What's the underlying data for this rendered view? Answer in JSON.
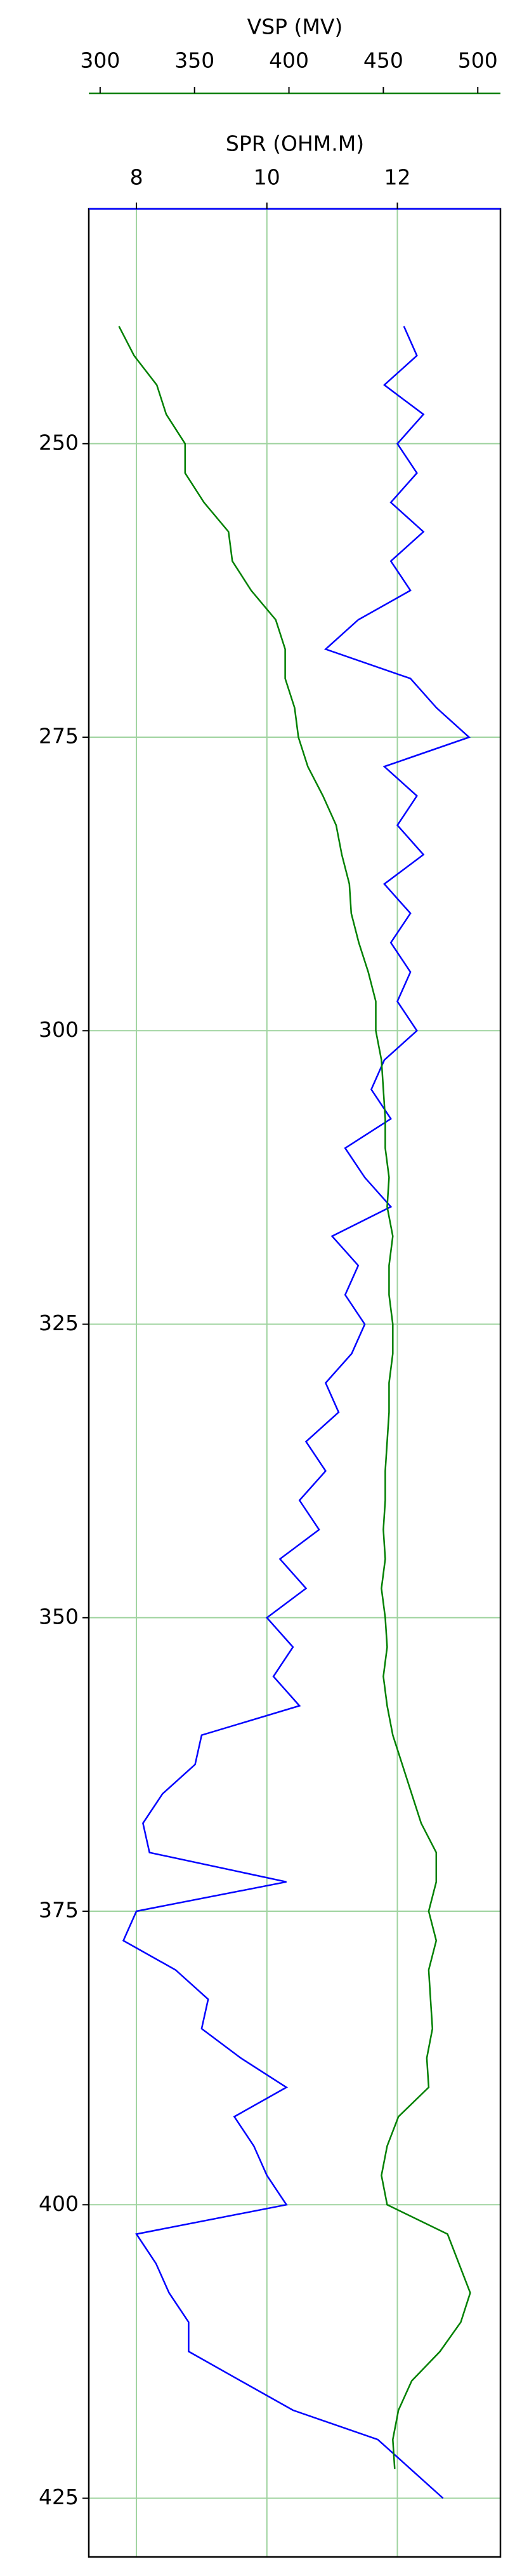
{
  "chart_data": {
    "type": "well-log",
    "depth": [
      240,
      242.5,
      245,
      247.5,
      250,
      252.5,
      255,
      257.5,
      260,
      262.5,
      265,
      267.5,
      270,
      272.5,
      275,
      277.5,
      280,
      282.5,
      285,
      287.5,
      290,
      292.5,
      295,
      297.5,
      300,
      302.5,
      305,
      307.5,
      310,
      312.5,
      315,
      317.5,
      320,
      322.5,
      325,
      327.5,
      330,
      332.5,
      335,
      337.5,
      340,
      342.5,
      345,
      347.5,
      350,
      352.5,
      355,
      357.5,
      360,
      362.5,
      365,
      367.5,
      370,
      372.5,
      375,
      377.5,
      380,
      382.5,
      385,
      387.5,
      390,
      392.5,
      395,
      397.5,
      400,
      402.5,
      405,
      407.5,
      410,
      412.5,
      415,
      417.5,
      420,
      422.5,
      425
    ],
    "series": [
      {
        "name": "SPR (OHM.M)",
        "color": "#0000ff",
        "axis": "x",
        "values": [
          12.1,
          12.3,
          11.8,
          12.4,
          12.0,
          12.3,
          11.9,
          12.4,
          11.9,
          12.2,
          11.4,
          10.9,
          12.2,
          12.6,
          13.1,
          11.8,
          12.3,
          12.0,
          12.4,
          11.8,
          12.2,
          11.9,
          12.2,
          12.0,
          12.3,
          11.8,
          11.6,
          11.9,
          11.2,
          11.5,
          11.9,
          11.0,
          11.4,
          11.2,
          11.5,
          11.3,
          10.9,
          11.1,
          10.6,
          10.9,
          10.5,
          10.8,
          10.2,
          10.6,
          10.0,
          10.4,
          10.1,
          10.5,
          9.0,
          8.9,
          8.4,
          8.1,
          8.2,
          10.3,
          8.0,
          7.8,
          8.6,
          9.1,
          9.0,
          9.6,
          10.3,
          9.5,
          9.8,
          10.0,
          10.3,
          8.0,
          8.3,
          8.5,
          8.8,
          8.8,
          9.6,
          10.4,
          11.7,
          12.2,
          12.7
        ]
      },
      {
        "name": "VSP (MV)",
        "color": "#008000",
        "axis": "x2",
        "values": [
          310,
          318,
          330,
          335,
          345,
          345,
          355,
          368,
          370,
          380,
          393,
          398,
          398,
          403,
          405,
          410,
          418,
          425,
          428,
          432,
          433,
          437,
          442,
          446,
          446,
          449,
          450,
          451,
          451,
          453,
          452,
          455,
          453,
          453,
          455,
          455,
          453,
          453,
          452,
          451,
          451,
          450,
          451,
          449,
          451,
          452,
          450,
          452,
          455,
          460,
          465,
          470,
          478,
          478,
          474,
          478,
          474,
          475,
          476,
          473,
          474,
          458,
          452,
          449,
          452,
          484,
          490,
          496,
          491,
          480,
          465,
          458,
          455,
          456,
          null
        ]
      }
    ],
    "xlim": [
      7.27,
      13.58
    ],
    "xticks": [
      8,
      10,
      12
    ],
    "x2lim": [
      294,
      512
    ],
    "x2ticks": [
      300,
      350,
      400,
      450,
      500
    ],
    "ylim": [
      230,
      430
    ],
    "yticks": [
      250,
      275,
      300,
      325,
      350,
      375,
      400,
      425
    ],
    "y_inverted": true,
    "grid": true,
    "grid_color": "#9fd39f"
  }
}
